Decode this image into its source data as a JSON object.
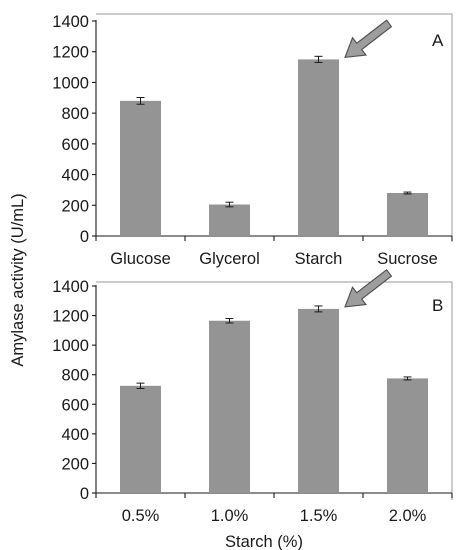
{
  "chart_data": [
    {
      "type": "bar",
      "panel_label": "A",
      "categories": [
        "Glucose",
        "Glycerol",
        "Starch",
        "Sucrose"
      ],
      "values": [
        880,
        205,
        1150,
        280
      ],
      "errors": [
        22,
        15,
        20,
        6
      ],
      "highlighted_category": "Starch",
      "ylim": [
        0,
        1400
      ],
      "yticks": [
        0,
        200,
        400,
        600,
        800,
        1000,
        1200,
        1400
      ],
      "xlabel": "",
      "ylabel": "Amylase activity (U/mL)",
      "bar_color": "#949494"
    },
    {
      "type": "bar",
      "panel_label": "B",
      "categories": [
        "0.5%",
        "1.0%",
        "1.5%",
        "2.0%"
      ],
      "values": [
        725,
        1165,
        1245,
        775
      ],
      "errors": [
        18,
        15,
        20,
        10
      ],
      "highlighted_category": "1.5%",
      "ylim": [
        0,
        1400
      ],
      "yticks": [
        0,
        200,
        400,
        600,
        800,
        1000,
        1200,
        1400
      ],
      "xlabel": "Starch (%)",
      "ylabel": "Amylase activity (U/mL)",
      "bar_color": "#949494"
    }
  ],
  "shared_ylabel": "Amylase activity (U/mL)"
}
